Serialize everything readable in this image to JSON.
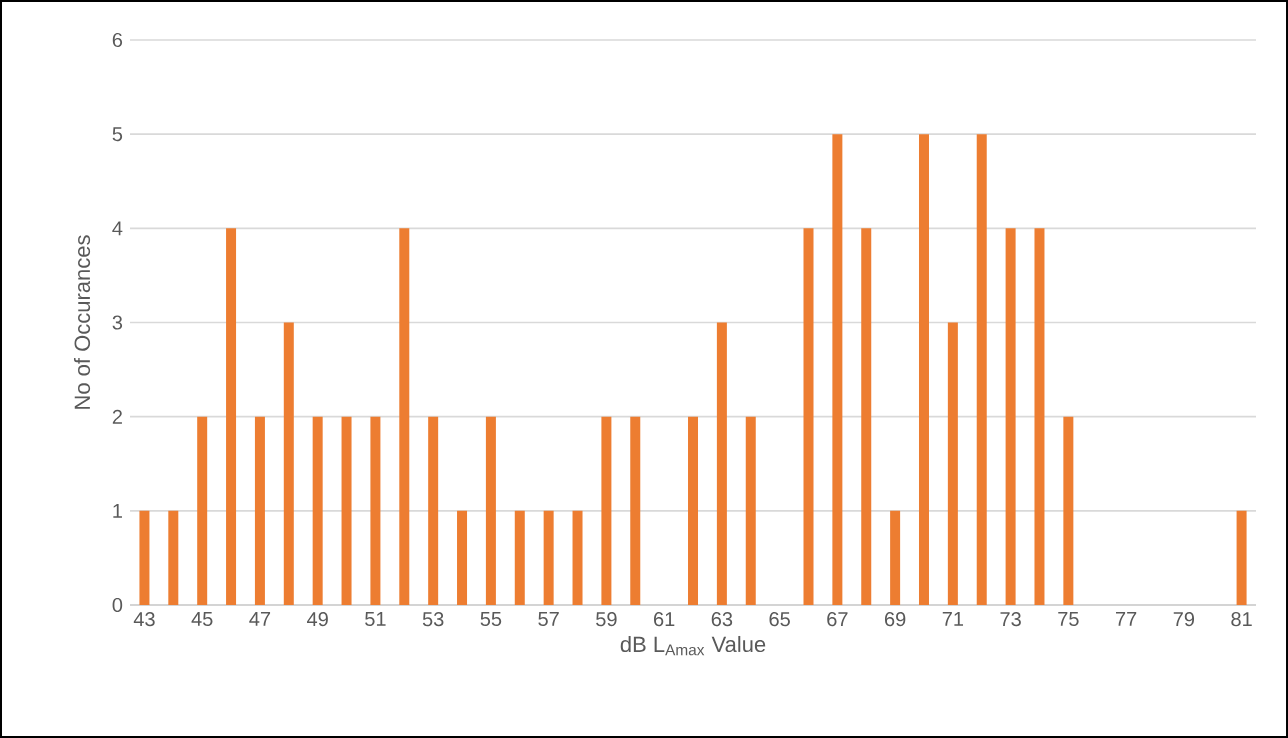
{
  "chart_data": {
    "type": "bar",
    "xlabel": "dB L$_{Amax}$ Value",
    "ylabel": "No of Occurances",
    "categories": [
      "43",
      null,
      "45",
      null,
      "47",
      null,
      "49",
      null,
      "51",
      null,
      "53",
      null,
      "55",
      null,
      "57",
      null,
      "59",
      null,
      "61",
      null,
      "63",
      null,
      "65",
      null,
      "67",
      null,
      "69",
      null,
      "71",
      null,
      "73",
      null,
      "75",
      null,
      "77",
      null,
      "79",
      null,
      "81"
    ],
    "values": [
      1,
      1,
      2,
      4,
      2,
      3,
      2,
      2,
      2,
      4,
      2,
      1,
      2,
      1,
      1,
      1,
      2,
      2,
      0,
      2,
      3,
      2,
      0,
      4,
      5,
      4,
      1,
      5,
      3,
      5,
      4,
      4,
      2,
      0,
      0,
      0,
      0,
      0,
      1
    ],
    "color": "#ed7d31",
    "ylim": [
      0,
      6
    ],
    "yticks": [
      0,
      1,
      2,
      3,
      4,
      5,
      6
    ],
    "grid": "y"
  }
}
